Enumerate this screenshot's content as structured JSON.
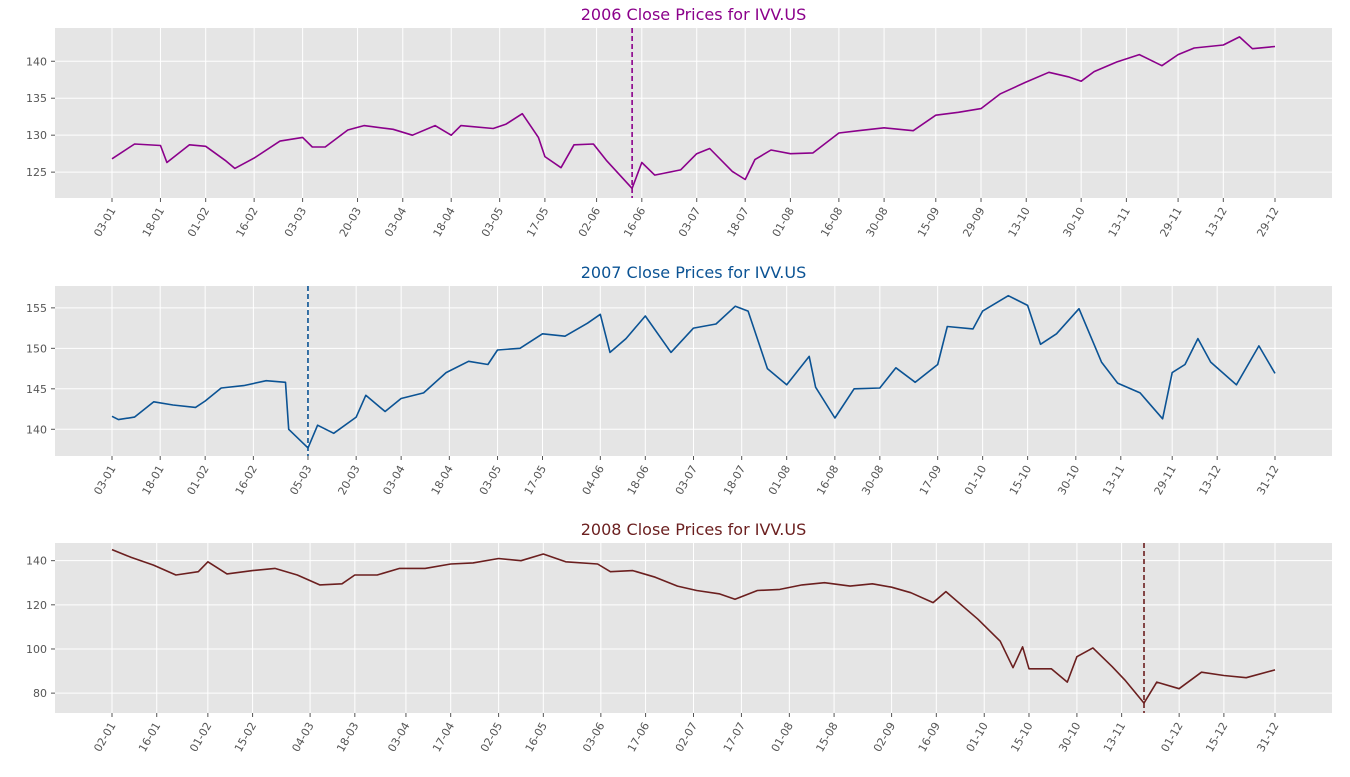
{
  "chart_data": [
    {
      "type": "line",
      "title": "2006 Close Prices for IVV.US",
      "color": "#8b008b",
      "xlabel": "",
      "ylabel": "",
      "ylim": [
        121.5,
        144.5
      ],
      "yticks": [
        125,
        130,
        135,
        140
      ],
      "x_range": [
        "2006-01-03",
        "2006-12-29"
      ],
      "xticks": [
        "03-01",
        "18-01",
        "01-02",
        "16-02",
        "03-03",
        "20-03",
        "03-04",
        "18-04",
        "03-05",
        "17-05",
        "02-06",
        "16-06",
        "03-07",
        "18-07",
        "01-08",
        "16-08",
        "30-08",
        "15-09",
        "29-09",
        "13-10",
        "30-10",
        "13-11",
        "29-11",
        "13-12",
        "29-12"
      ],
      "vline_date": "2006-06-13",
      "grid": true,
      "points": [
        [
          "2006-01-03",
          126.8
        ],
        [
          "2006-01-10",
          128.8
        ],
        [
          "2006-01-18",
          128.6
        ],
        [
          "2006-01-20",
          126.3
        ],
        [
          "2006-01-27",
          128.7
        ],
        [
          "2006-02-01",
          128.5
        ],
        [
          "2006-02-07",
          126.6
        ],
        [
          "2006-02-10",
          125.5
        ],
        [
          "2006-02-16",
          126.9
        ],
        [
          "2006-02-24",
          129.2
        ],
        [
          "2006-03-03",
          129.7
        ],
        [
          "2006-03-06",
          128.4
        ],
        [
          "2006-03-10",
          128.4
        ],
        [
          "2006-03-17",
          130.7
        ],
        [
          "2006-03-22",
          131.3
        ],
        [
          "2006-03-31",
          130.8
        ],
        [
          "2006-04-06",
          130.0
        ],
        [
          "2006-04-13",
          131.3
        ],
        [
          "2006-04-18",
          130.0
        ],
        [
          "2006-04-21",
          131.3
        ],
        [
          "2006-05-01",
          130.9
        ],
        [
          "2006-05-05",
          131.5
        ],
        [
          "2006-05-10",
          132.9
        ],
        [
          "2006-05-15",
          129.7
        ],
        [
          "2006-05-17",
          127.1
        ],
        [
          "2006-05-22",
          125.6
        ],
        [
          "2006-05-26",
          128.7
        ],
        [
          "2006-06-01",
          128.8
        ],
        [
          "2006-06-05",
          126.6
        ],
        [
          "2006-06-13",
          122.8
        ],
        [
          "2006-06-16",
          126.3
        ],
        [
          "2006-06-20",
          124.6
        ],
        [
          "2006-06-28",
          125.3
        ],
        [
          "2006-07-03",
          127.5
        ],
        [
          "2006-07-07",
          128.2
        ],
        [
          "2006-07-14",
          125.1
        ],
        [
          "2006-07-18",
          124.0
        ],
        [
          "2006-07-21",
          126.7
        ],
        [
          "2006-07-26",
          128.0
        ],
        [
          "2006-08-01",
          127.5
        ],
        [
          "2006-08-08",
          127.6
        ],
        [
          "2006-08-16",
          130.3
        ],
        [
          "2006-08-22",
          130.6
        ],
        [
          "2006-08-30",
          131.0
        ],
        [
          "2006-09-08",
          130.6
        ],
        [
          "2006-09-15",
          132.7
        ],
        [
          "2006-09-22",
          133.1
        ],
        [
          "2006-09-29",
          133.6
        ],
        [
          "2006-10-05",
          135.6
        ],
        [
          "2006-10-13",
          137.2
        ],
        [
          "2006-10-20",
          138.5
        ],
        [
          "2006-10-26",
          137.9
        ],
        [
          "2006-10-30",
          137.3
        ],
        [
          "2006-11-03",
          138.6
        ],
        [
          "2006-11-10",
          139.9
        ],
        [
          "2006-11-17",
          140.9
        ],
        [
          "2006-11-24",
          139.4
        ],
        [
          "2006-11-29",
          140.9
        ],
        [
          "2006-12-04",
          141.8
        ],
        [
          "2006-12-13",
          142.2
        ],
        [
          "2006-12-18",
          143.3
        ],
        [
          "2006-12-22",
          141.7
        ],
        [
          "2006-12-29",
          142.0
        ]
      ]
    },
    {
      "type": "line",
      "title": "2007 Close Prices for IVV.US",
      "color": "#0b5394",
      "xlabel": "",
      "ylabel": "",
      "ylim": [
        136.7,
        157.7
      ],
      "yticks": [
        140,
        145,
        150,
        155
      ],
      "x_range": [
        "2007-01-03",
        "2007-12-31"
      ],
      "xticks": [
        "03-01",
        "18-01",
        "01-02",
        "16-02",
        "05-03",
        "20-03",
        "03-04",
        "18-04",
        "03-05",
        "17-05",
        "04-06",
        "18-06",
        "03-07",
        "18-07",
        "01-08",
        "16-08",
        "30-08",
        "17-09",
        "01-10",
        "15-10",
        "30-10",
        "13-11",
        "29-11",
        "13-12",
        "31-12"
      ],
      "vline_date": "2007-03-05",
      "grid": true,
      "points": [
        [
          "2007-01-03",
          141.6
        ],
        [
          "2007-01-05",
          141.2
        ],
        [
          "2007-01-10",
          141.5
        ],
        [
          "2007-01-16",
          143.4
        ],
        [
          "2007-01-22",
          143.0
        ],
        [
          "2007-01-29",
          142.7
        ],
        [
          "2007-02-01",
          143.5
        ],
        [
          "2007-02-06",
          145.1
        ],
        [
          "2007-02-13",
          145.4
        ],
        [
          "2007-02-20",
          146.0
        ],
        [
          "2007-02-26",
          145.8
        ],
        [
          "2007-02-27",
          140.0
        ],
        [
          "2007-03-05",
          137.7
        ],
        [
          "2007-03-08",
          140.5
        ],
        [
          "2007-03-13",
          139.5
        ],
        [
          "2007-03-20",
          141.5
        ],
        [
          "2007-03-23",
          144.2
        ],
        [
          "2007-03-29",
          142.2
        ],
        [
          "2007-04-03",
          143.8
        ],
        [
          "2007-04-10",
          144.5
        ],
        [
          "2007-04-17",
          147.0
        ],
        [
          "2007-04-24",
          148.4
        ],
        [
          "2007-04-30",
          148.0
        ],
        [
          "2007-05-03",
          149.8
        ],
        [
          "2007-05-10",
          150.0
        ],
        [
          "2007-05-17",
          151.8
        ],
        [
          "2007-05-24",
          151.5
        ],
        [
          "2007-05-31",
          153.1
        ],
        [
          "2007-06-04",
          154.2
        ],
        [
          "2007-06-07",
          149.5
        ],
        [
          "2007-06-12",
          151.2
        ],
        [
          "2007-06-18",
          154.0
        ],
        [
          "2007-06-26",
          149.5
        ],
        [
          "2007-07-03",
          152.5
        ],
        [
          "2007-07-10",
          153.0
        ],
        [
          "2007-07-16",
          155.2
        ],
        [
          "2007-07-20",
          154.6
        ],
        [
          "2007-07-26",
          147.5
        ],
        [
          "2007-08-01",
          145.5
        ],
        [
          "2007-08-08",
          149.0
        ],
        [
          "2007-08-10",
          145.2
        ],
        [
          "2007-08-16",
          141.4
        ],
        [
          "2007-08-22",
          145.0
        ],
        [
          "2007-08-30",
          145.1
        ],
        [
          "2007-09-04",
          147.6
        ],
        [
          "2007-09-10",
          145.8
        ],
        [
          "2007-09-17",
          148.0
        ],
        [
          "2007-09-20",
          152.7
        ],
        [
          "2007-09-28",
          152.4
        ],
        [
          "2007-10-01",
          154.6
        ],
        [
          "2007-10-09",
          156.5
        ],
        [
          "2007-10-15",
          155.3
        ],
        [
          "2007-10-19",
          150.5
        ],
        [
          "2007-10-24",
          151.8
        ],
        [
          "2007-10-31",
          154.9
        ],
        [
          "2007-11-07",
          148.3
        ],
        [
          "2007-11-12",
          145.7
        ],
        [
          "2007-11-19",
          144.5
        ],
        [
          "2007-11-26",
          141.3
        ],
        [
          "2007-11-29",
          147.0
        ],
        [
          "2007-12-03",
          148.0
        ],
        [
          "2007-12-07",
          151.2
        ],
        [
          "2007-12-11",
          148.3
        ],
        [
          "2007-12-19",
          145.5
        ],
        [
          "2007-12-26",
          150.3
        ],
        [
          "2007-12-31",
          146.9
        ]
      ]
    },
    {
      "type": "line",
      "title": "2008 Close Prices for IVV.US",
      "color": "#6b1f1f",
      "xlabel": "",
      "ylabel": "",
      "ylim": [
        71,
        148
      ],
      "yticks": [
        80,
        100,
        120,
        140
      ],
      "x_range": [
        "2008-01-02",
        "2008-12-31"
      ],
      "xticks": [
        "02-01",
        "16-01",
        "01-02",
        "15-02",
        "04-03",
        "18-03",
        "03-04",
        "17-04",
        "02-05",
        "16-05",
        "03-06",
        "17-06",
        "02-07",
        "17-07",
        "01-08",
        "15-08",
        "02-09",
        "16-09",
        "01-10",
        "15-10",
        "30-10",
        "13-11",
        "01-12",
        "15-12",
        "31-12"
      ],
      "vline_date": "2008-11-20",
      "grid": true,
      "points": [
        [
          "2008-01-02",
          145.0
        ],
        [
          "2008-01-08",
          141.5
        ],
        [
          "2008-01-15",
          138.0
        ],
        [
          "2008-01-22",
          133.5
        ],
        [
          "2008-01-29",
          135.0
        ],
        [
          "2008-02-01",
          139.5
        ],
        [
          "2008-02-07",
          134.0
        ],
        [
          "2008-02-15",
          135.5
        ],
        [
          "2008-02-22",
          136.5
        ],
        [
          "2008-02-29",
          133.5
        ],
        [
          "2008-03-07",
          129.0
        ],
        [
          "2008-03-14",
          129.5
        ],
        [
          "2008-03-18",
          133.5
        ],
        [
          "2008-03-25",
          133.5
        ],
        [
          "2008-04-01",
          136.5
        ],
        [
          "2008-04-09",
          136.5
        ],
        [
          "2008-04-17",
          138.5
        ],
        [
          "2008-04-24",
          139.0
        ],
        [
          "2008-05-02",
          141.0
        ],
        [
          "2008-05-09",
          140.0
        ],
        [
          "2008-05-16",
          143.0
        ],
        [
          "2008-05-23",
          139.5
        ],
        [
          "2008-06-02",
          138.5
        ],
        [
          "2008-06-06",
          135.0
        ],
        [
          "2008-06-13",
          135.5
        ],
        [
          "2008-06-20",
          132.5
        ],
        [
          "2008-06-27",
          128.5
        ],
        [
          "2008-07-03",
          126.5
        ],
        [
          "2008-07-10",
          125.0
        ],
        [
          "2008-07-15",
          122.5
        ],
        [
          "2008-07-22",
          126.5
        ],
        [
          "2008-07-29",
          127.0
        ],
        [
          "2008-08-05",
          129.0
        ],
        [
          "2008-08-12",
          130.0
        ],
        [
          "2008-08-20",
          128.5
        ],
        [
          "2008-08-27",
          129.5
        ],
        [
          "2008-09-02",
          128.0
        ],
        [
          "2008-09-08",
          125.5
        ],
        [
          "2008-09-15",
          121.0
        ],
        [
          "2008-09-19",
          126.0
        ],
        [
          "2008-09-29",
          113.5
        ],
        [
          "2008-10-06",
          103.5
        ],
        [
          "2008-10-10",
          91.5
        ],
        [
          "2008-10-13",
          101.0
        ],
        [
          "2008-10-15",
          91.0
        ],
        [
          "2008-10-22",
          91.0
        ],
        [
          "2008-10-27",
          85.0
        ],
        [
          "2008-10-30",
          96.5
        ],
        [
          "2008-11-04",
          100.5
        ],
        [
          "2008-11-10",
          92.0
        ],
        [
          "2008-11-14",
          86.0
        ],
        [
          "2008-11-20",
          75.5
        ],
        [
          "2008-11-24",
          85.0
        ],
        [
          "2008-12-01",
          82.0
        ],
        [
          "2008-12-08",
          89.5
        ],
        [
          "2008-12-15",
          88.0
        ],
        [
          "2008-12-22",
          87.0
        ],
        [
          "2008-12-31",
          90.5
        ]
      ]
    }
  ]
}
